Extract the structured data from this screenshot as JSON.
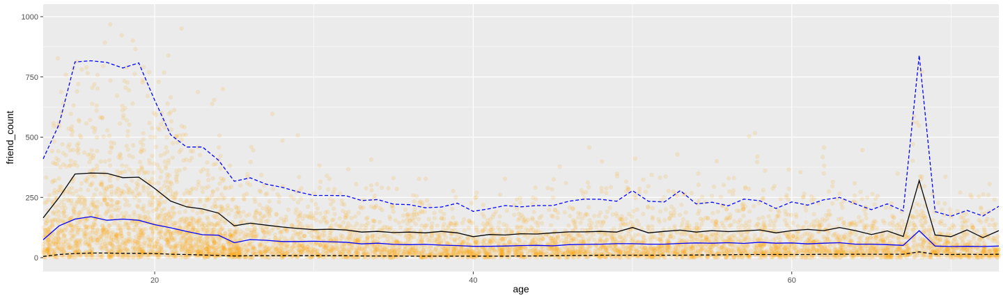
{
  "chart_data": {
    "type": "scatter",
    "title": "",
    "xlabel": "age",
    "ylabel": "friend_count",
    "xlim": [
      13,
      73
    ],
    "ylim": [
      0,
      1000
    ],
    "x_ticks": [
      20,
      40,
      60
    ],
    "y_ticks": [
      0,
      250,
      500,
      750,
      1000
    ],
    "grid": true,
    "legend": "none",
    "colors": {
      "panel": "#ebebeb",
      "grid": "#ffffff",
      "points": "#ffa500",
      "mean_line": "#000000",
      "quantile_lines": "#0000ff"
    },
    "summary_x": [
      13,
      14,
      15,
      16,
      17,
      18,
      19,
      20,
      21,
      22,
      23,
      24,
      25,
      26,
      27,
      28,
      29,
      30,
      31,
      32,
      33,
      34,
      35,
      36,
      37,
      38,
      39,
      40,
      41,
      42,
      43,
      44,
      45,
      46,
      47,
      48,
      49,
      50,
      51,
      52,
      53,
      54,
      55,
      56,
      57,
      58,
      59,
      60,
      61,
      62,
      63,
      64,
      65,
      66,
      67,
      68,
      69,
      70,
      71,
      72,
      73
    ],
    "series": [
      {
        "role": "mean",
        "color": "#000000",
        "dash": "solid",
        "values": [
          165,
          250,
          347,
          351,
          350,
          332,
          334,
          287,
          235,
          211,
          202,
          185,
          132,
          143,
          135,
          127,
          121,
          116,
          118,
          115,
          106,
          109,
          104,
          106,
          103,
          109,
          103,
          87,
          96,
          94,
          99,
          98,
          103,
          107,
          107,
          109,
          106,
          125,
          103,
          109,
          114,
          106,
          112,
          108,
          111,
          115,
          103,
          112,
          117,
          112,
          125,
          112,
          96,
          111,
          88,
          320,
          94,
          87,
          115,
          83,
          112
        ]
      },
      {
        "role": "median",
        "color": "#0000ff",
        "dash": "solid",
        "values": [
          74,
          132,
          160,
          170,
          155,
          160,
          155,
          137,
          124,
          109,
          95,
          93,
          62,
          75,
          72,
          67,
          67,
          68,
          66,
          64,
          57,
          60,
          55,
          54,
          55,
          52,
          50,
          47,
          47,
          48,
          50,
          51,
          49,
          54,
          55,
          56,
          58,
          58,
          56,
          56,
          59,
          61,
          60,
          62,
          59,
          64,
          60,
          61,
          57,
          60,
          62,
          56,
          56,
          54,
          51,
          112,
          48,
          46,
          47,
          46,
          48
        ]
      },
      {
        "role": "90% quantile",
        "color": "#0000ff",
        "dash": "dashed",
        "values": [
          410,
          554,
          812,
          817,
          810,
          787,
          808,
          653,
          510,
          459,
          459,
          405,
          317,
          331,
          305,
          292,
          273,
          258,
          258,
          257,
          237,
          241,
          222,
          220,
          207,
          210,
          226,
          192,
          203,
          216,
          211,
          216,
          216,
          234,
          243,
          242,
          234,
          278,
          234,
          231,
          278,
          223,
          230,
          215,
          243,
          236,
          204,
          231,
          218,
          240,
          250,
          223,
          199,
          223,
          194,
          840,
          191,
          172,
          196,
          173,
          213
        ]
      },
      {
        "role": "10% quantile",
        "color": "#000000",
        "dash": "dashed",
        "values": [
          5,
          13,
          17,
          19,
          19,
          18,
          18,
          17,
          14,
          13,
          11,
          9,
          7,
          8,
          8,
          8,
          8,
          8,
          8,
          8,
          7,
          7,
          7,
          6,
          6,
          6,
          6,
          6,
          6,
          6,
          7,
          7,
          8,
          9,
          9,
          10,
          10,
          10,
          10,
          10,
          10,
          11,
          11,
          12,
          13,
          13,
          13,
          13,
          13,
          14,
          14,
          14,
          14,
          14,
          14,
          24,
          14,
          13,
          14,
          13,
          14
        ]
      }
    ]
  }
}
